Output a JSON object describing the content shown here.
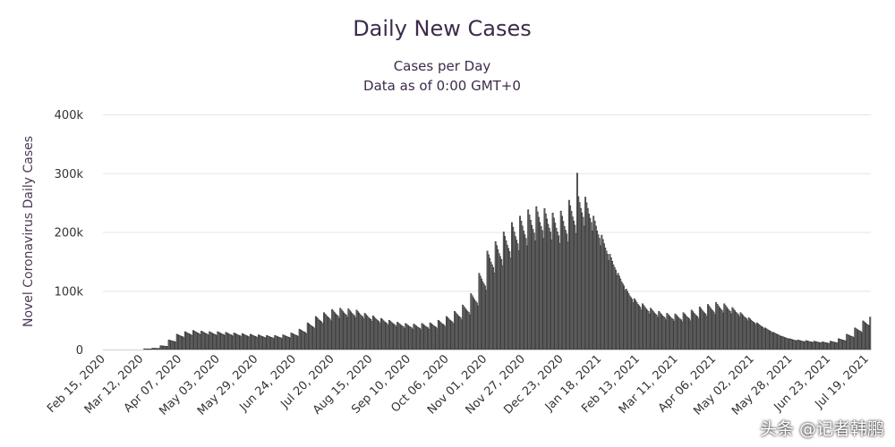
{
  "chart_data": {
    "type": "bar",
    "title": "Daily New Cases",
    "subtitle_lines": [
      "Cases per Day",
      "Data as of 0:00 GMT+0"
    ],
    "xlabel": "",
    "ylabel": "Novel Coronavirus Daily Cases",
    "ylim": [
      0,
      400000
    ],
    "y_ticks": [
      0,
      100000,
      200000,
      300000,
      400000
    ],
    "y_tick_labels": [
      "0",
      "100k",
      "200k",
      "300k",
      "400k"
    ],
    "grid": true,
    "legend": "none",
    "x_tick_labels": [
      "Feb 15, 2020",
      "Mar 12, 2020",
      "Apr 07, 2020",
      "May 03, 2020",
      "May 29, 2020",
      "Jun 24, 2020",
      "Jul 20, 2020",
      "Aug 15, 2020",
      "Sep 10, 2020",
      "Oct 06, 2020",
      "Nov 01, 2020",
      "Nov 27, 2020",
      "Dec 23, 2020",
      "Jan 18, 2021",
      "Feb 13, 2021",
      "Mar 11, 2021",
      "Apr 06, 2021",
      "May 02, 2021",
      "May 28, 2021",
      "Jun 23, 2021",
      "Jul 19, 2021"
    ],
    "x_tick_spacing_days": 26,
    "series": [
      {
        "name": "Daily Cases",
        "weekly_avg_values": [
          0,
          0,
          0,
          0,
          0,
          1000,
          2000,
          6000,
          15000,
          24000,
          28000,
          30000,
          29000,
          28000,
          28000,
          27000,
          26000,
          25000,
          24000,
          23000,
          22000,
          22000,
          23000,
          26000,
          32000,
          42000,
          52000,
          58000,
          63000,
          65000,
          64000,
          62000,
          57000,
          53000,
          49000,
          46000,
          43000,
          41000,
          40000,
          41000,
          42000,
          46000,
          52000,
          60000,
          70000,
          88000,
          120000,
          155000,
          170000,
          185000,
          200000,
          210000,
          220000,
          225000,
          222000,
          215000,
          218000,
          235000,
          250000,
          240000,
          210000,
          180000,
          150000,
          120000,
          95000,
          80000,
          72000,
          65000,
          60000,
          57000,
          56000,
          58000,
          62000,
          67000,
          71000,
          74000,
          72000,
          66000,
          58000,
          50000,
          42000,
          34000,
          27000,
          21000,
          17000,
          15000,
          14000,
          13000,
          12000,
          13000,
          17000,
          24000,
          34000,
          45000
        ],
        "peak_value": 300000,
        "last_value": 55000
      }
    ]
  },
  "watermark": "头条 @记者韩鹏"
}
